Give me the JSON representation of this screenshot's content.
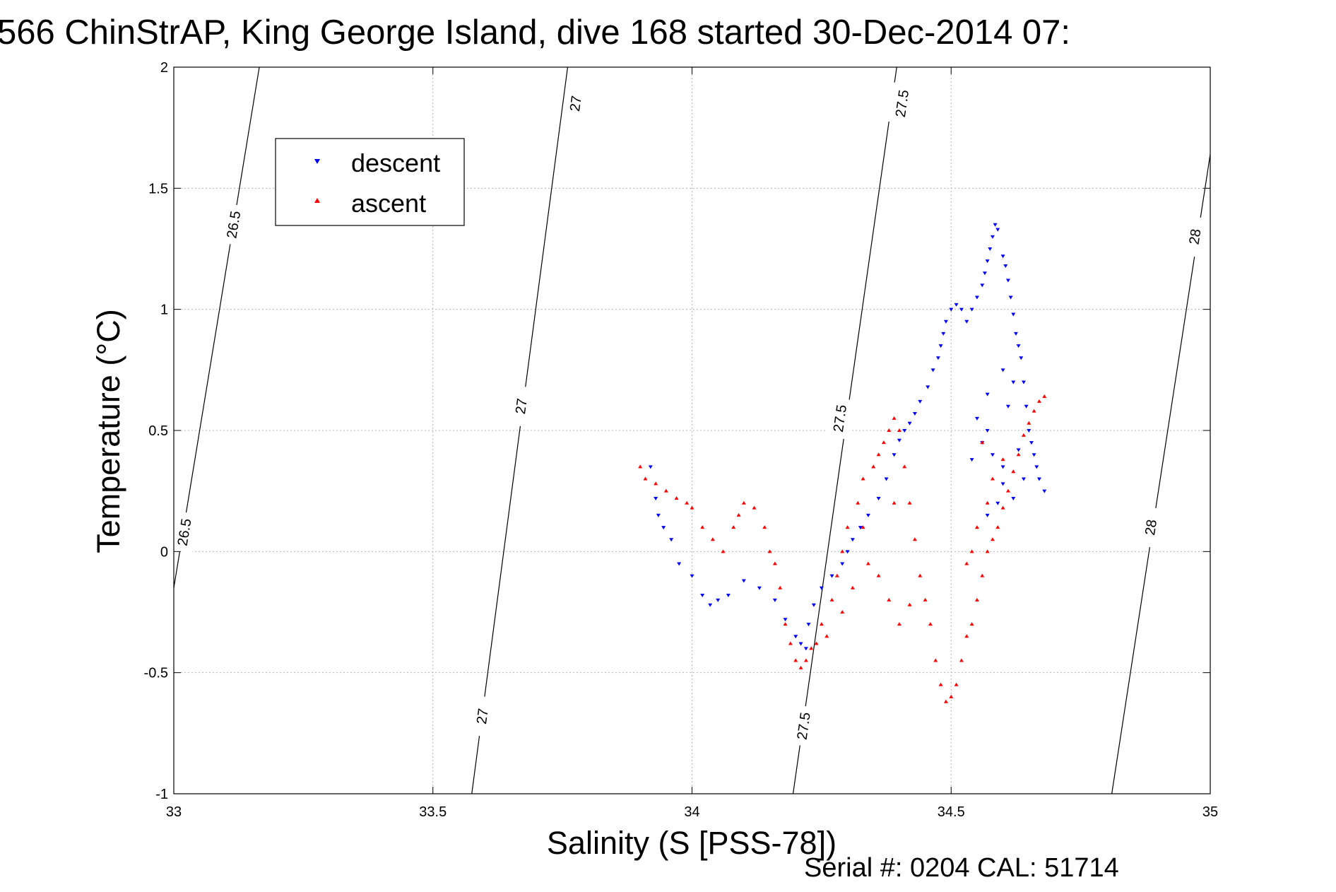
{
  "figure": {
    "title": "566 ChinStrAP, King George Island, dive 168 started 30-Dec-2014 07:",
    "footer": "Serial #: 0204  CAL: 51714"
  },
  "chart_data": {
    "type": "scatter",
    "title": "566 ChinStrAP, King George Island, dive 168 started 30-Dec-2014 07:",
    "xlabel": "Salinity (S [PSS-78])",
    "ylabel": "Temperature (°C)",
    "xlim": [
      33,
      35
    ],
    "ylim": [
      -1,
      2
    ],
    "xticks": [
      33,
      33.5,
      34,
      34.5,
      35
    ],
    "xtick_labels": [
      "33",
      "33.5",
      "34",
      "34.5",
      "35"
    ],
    "yticks": [
      -1,
      -0.5,
      0,
      0.5,
      1,
      1.5,
      2
    ],
    "ytick_labels": [
      "-1",
      "-0.5",
      "0",
      "0.5",
      "1",
      "1.5",
      "2"
    ],
    "grid": true,
    "legend": {
      "position": "top-left",
      "entries": [
        "descent",
        "ascent"
      ]
    },
    "colors": {
      "descent": "#0000ff",
      "ascent": "#ff0000",
      "contour": "#000000",
      "grid": "#b4b4b4"
    },
    "contours": [
      {
        "label": "26.5",
        "points": [
          [
            33.0,
            -0.15
          ],
          [
            33.165,
            2.0
          ]
        ],
        "label_positions": [
          [
            33.02,
            0.08
          ],
          [
            33.115,
            1.35
          ]
        ]
      },
      {
        "label": "27",
        "points": [
          [
            33.575,
            -1.0
          ],
          [
            33.76,
            2.0
          ]
        ],
        "label_positions": [
          [
            33.595,
            -0.68
          ],
          [
            33.67,
            0.6
          ],
          [
            33.775,
            1.85
          ]
        ]
      },
      {
        "label": "27.5",
        "points": [
          [
            34.195,
            -1.0
          ],
          [
            34.395,
            2.0
          ]
        ],
        "label_positions": [
          [
            34.215,
            -0.72
          ],
          [
            34.285,
            0.55
          ],
          [
            34.405,
            1.85
          ]
        ]
      },
      {
        "label": "28",
        "points": [
          [
            34.81,
            -1.0
          ],
          [
            35.0,
            1.64
          ]
        ],
        "label_positions": [
          [
            34.885,
            0.1
          ],
          [
            34.97,
            1.3
          ]
        ]
      }
    ],
    "series": [
      {
        "name": "descent",
        "marker": "triangle-down",
        "x": [
          33.92,
          33.93,
          33.935,
          33.945,
          33.96,
          33.975,
          34.0,
          34.02,
          34.035,
          34.05,
          34.07,
          34.1,
          34.13,
          34.16,
          34.18,
          34.2,
          34.21,
          34.22,
          34.225,
          34.235,
          34.25,
          34.27,
          34.29,
          34.3,
          34.31,
          34.325,
          34.34,
          34.36,
          34.375,
          34.39,
          34.4,
          34.41,
          34.42,
          34.43,
          34.44,
          34.455,
          34.465,
          34.475,
          34.48,
          34.485,
          34.49,
          34.5,
          34.51,
          34.52,
          34.53,
          34.54,
          34.55,
          34.56,
          34.565,
          34.57,
          34.575,
          34.58,
          34.585,
          34.59,
          34.6,
          34.605,
          34.61,
          34.615,
          34.62,
          34.625,
          34.63,
          34.635,
          34.64,
          34.645,
          34.65,
          34.655,
          34.66,
          34.665,
          34.67,
          34.68,
          34.6,
          34.62,
          34.58,
          34.64,
          34.57,
          34.6,
          34.56,
          34.63,
          34.59,
          34.55,
          34.61,
          34.57,
          34.62,
          34.54,
          34.6,
          34.57
        ],
        "y": [
          0.35,
          0.22,
          0.15,
          0.1,
          0.05,
          -0.05,
          -0.1,
          -0.18,
          -0.22,
          -0.2,
          -0.18,
          -0.12,
          -0.15,
          -0.2,
          -0.28,
          -0.35,
          -0.38,
          -0.4,
          -0.3,
          -0.22,
          -0.15,
          -0.1,
          -0.05,
          0.0,
          0.05,
          0.1,
          0.15,
          0.22,
          0.3,
          0.4,
          0.46,
          0.5,
          0.53,
          0.57,
          0.62,
          0.68,
          0.75,
          0.8,
          0.85,
          0.9,
          0.95,
          1.0,
          1.02,
          1.0,
          0.95,
          1.0,
          1.05,
          1.1,
          1.15,
          1.2,
          1.25,
          1.3,
          1.35,
          1.33,
          1.22,
          1.18,
          1.12,
          1.05,
          0.98,
          0.9,
          0.85,
          0.8,
          0.7,
          0.6,
          0.5,
          0.45,
          0.4,
          0.35,
          0.3,
          0.25,
          0.28,
          0.22,
          0.4,
          0.3,
          0.5,
          0.35,
          0.45,
          0.42,
          0.2,
          0.55,
          0.6,
          0.65,
          0.7,
          0.38,
          0.75,
          0.15
        ]
      },
      {
        "name": "ascent",
        "marker": "triangle-up",
        "x": [
          33.9,
          33.91,
          33.93,
          33.95,
          33.97,
          33.99,
          34.0,
          34.02,
          34.04,
          34.06,
          34.08,
          34.09,
          34.1,
          34.12,
          34.14,
          34.15,
          34.16,
          34.17,
          34.18,
          34.19,
          34.2,
          34.21,
          34.22,
          34.23,
          34.24,
          34.25,
          34.27,
          34.28,
          34.29,
          34.3,
          34.32,
          34.33,
          34.35,
          34.36,
          34.37,
          34.38,
          34.39,
          34.4,
          34.41,
          34.42,
          34.43,
          34.44,
          34.45,
          34.46,
          34.47,
          34.48,
          34.49,
          34.5,
          34.51,
          34.52,
          34.53,
          34.54,
          34.55,
          34.56,
          34.57,
          34.58,
          34.59,
          34.6,
          34.61,
          34.62,
          34.63,
          34.64,
          34.65,
          34.66,
          34.67,
          34.68,
          34.55,
          34.57,
          34.53,
          34.58,
          34.54,
          34.6,
          34.56,
          34.36,
          34.38,
          34.4,
          34.42,
          34.34,
          34.31,
          34.29,
          34.26,
          34.33,
          34.39
        ],
        "y": [
          0.35,
          0.3,
          0.28,
          0.25,
          0.22,
          0.2,
          0.18,
          0.1,
          0.05,
          0.0,
          0.1,
          0.15,
          0.2,
          0.18,
          0.1,
          0.0,
          -0.05,
          -0.15,
          -0.3,
          -0.38,
          -0.45,
          -0.48,
          -0.45,
          -0.4,
          -0.38,
          -0.3,
          -0.2,
          -0.1,
          0.0,
          0.1,
          0.2,
          0.3,
          0.35,
          0.4,
          0.45,
          0.5,
          0.55,
          0.5,
          0.35,
          0.2,
          0.05,
          -0.1,
          -0.2,
          -0.3,
          -0.45,
          -0.55,
          -0.62,
          -0.6,
          -0.55,
          -0.45,
          -0.35,
          -0.3,
          -0.2,
          -0.1,
          0.0,
          0.05,
          0.1,
          0.18,
          0.25,
          0.33,
          0.4,
          0.48,
          0.53,
          0.58,
          0.62,
          0.64,
          0.1,
          0.2,
          -0.05,
          0.3,
          0.0,
          0.38,
          0.45,
          -0.1,
          -0.2,
          -0.3,
          -0.22,
          -0.05,
          -0.15,
          -0.25,
          -0.35,
          0.1,
          0.2
        ]
      }
    ]
  }
}
